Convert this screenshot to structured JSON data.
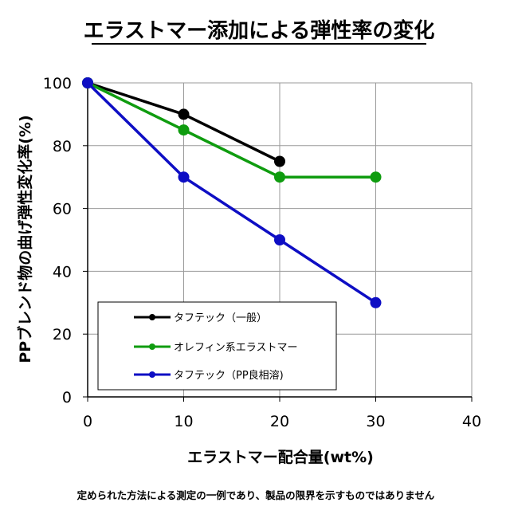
{
  "chart_data": {
    "type": "line",
    "title": "エラストマー添加による弾性率の変化",
    "xlabel": "エラストマー配合量(wt%)",
    "ylabel": "PPブレンド物の曲げ弾性変化率(%)",
    "xlim": [
      0,
      40
    ],
    "ylim": [
      0,
      100
    ],
    "xticks": [
      0,
      10,
      20,
      30,
      40
    ],
    "yticks": [
      0,
      20,
      40,
      60,
      80,
      100
    ],
    "grid": true,
    "legend_position": "bottom-left",
    "series": [
      {
        "name": "タフテック（一般）",
        "color": "#000000",
        "x": [
          0,
          10,
          20
        ],
        "y": [
          100,
          90,
          75
        ]
      },
      {
        "name": "オレフィン系エラストマー",
        "color": "#0f9c0f",
        "x": [
          0,
          10,
          20,
          30
        ],
        "y": [
          100,
          85,
          70,
          70
        ]
      },
      {
        "name": "タフテック（PP良相溶)",
        "color": "#0e0ec4",
        "x": [
          0,
          10,
          20,
          30
        ],
        "y": [
          100,
          70,
          50,
          30
        ]
      }
    ]
  },
  "footnote": "定められた方法による測定の一例であり、製品の限界を示すものではありません"
}
